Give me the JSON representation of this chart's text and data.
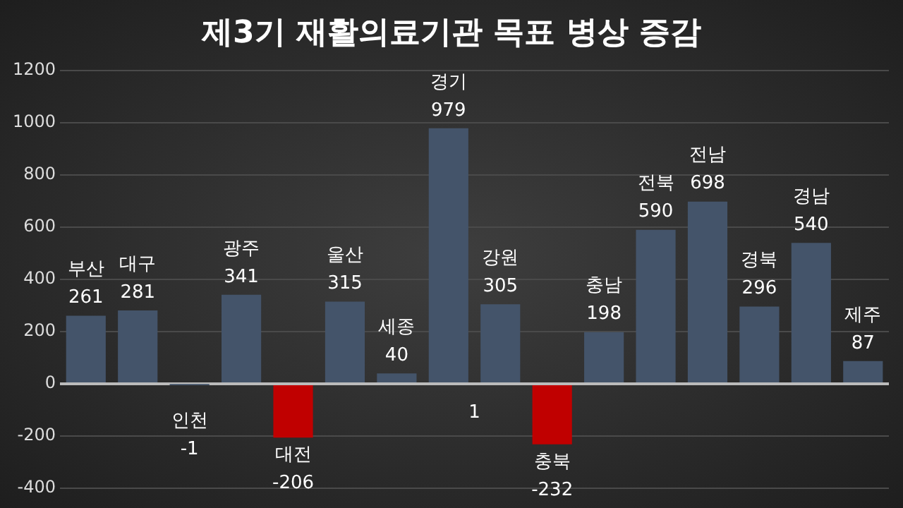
{
  "chart_data": {
    "type": "bar",
    "title": "제3기 재활의료기관 목표 병상 증감",
    "categories": [
      "부산",
      "대구",
      "인천",
      "광주",
      "대전",
      "울산",
      "세종",
      "경기",
      "강원",
      "충북",
      "충남",
      "전북",
      "전남",
      "경북",
      "경남",
      "제주"
    ],
    "values": [
      261,
      281,
      -1,
      341,
      -206,
      315,
      40,
      979,
      305,
      -232,
      198,
      590,
      698,
      296,
      540,
      87
    ],
    "colors": [
      "#44546a",
      "#44546a",
      "#44546a",
      "#44546a",
      "#c00000",
      "#44546a",
      "#44546a",
      "#44546a",
      "#44546a",
      "#c00000",
      "#44546a",
      "#44546a",
      "#44546a",
      "#44546a",
      "#44546a",
      "#44546a"
    ],
    "ylim": [
      -400,
      1200
    ],
    "yticks": [
      -400,
      -200,
      0,
      200,
      400,
      600,
      800,
      1000,
      1200
    ],
    "grid": "y",
    "legend": false,
    "tick_labels": "y",
    "data_labels": true,
    "annotations": [
      "1"
    ]
  }
}
